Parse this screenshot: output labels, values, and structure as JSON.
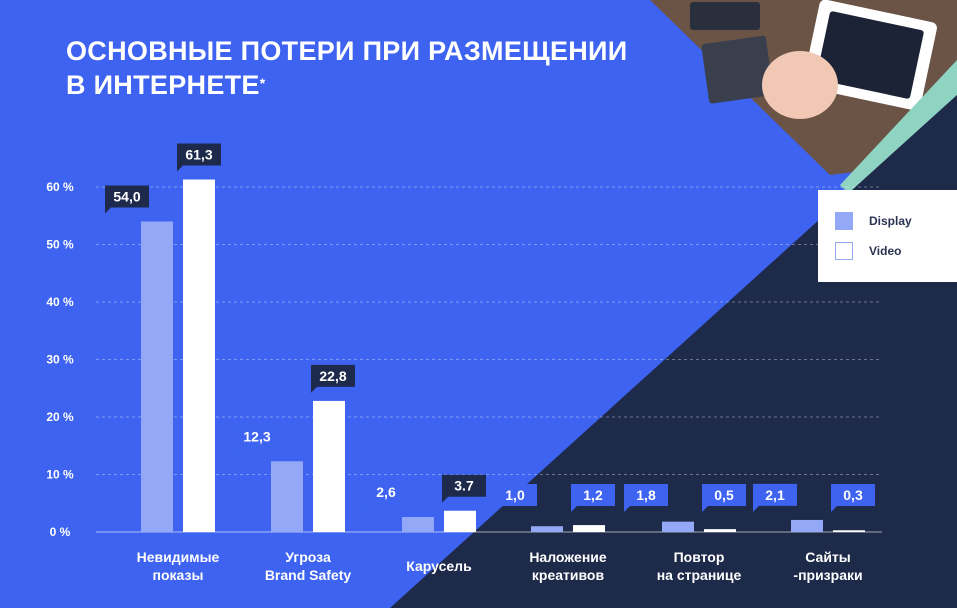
{
  "header": {
    "title_line1": "ОСНОВНЫЕ ПОТЕРИ ПРИ РАЗМЕЩЕНИИ",
    "title_line2": "В ИНТЕРНЕТЕ",
    "title_mark": "*"
  },
  "legend": {
    "items": [
      {
        "label": "Display",
        "color": "#93a9f8"
      },
      {
        "label": "Video",
        "color": "#ffffff"
      }
    ]
  },
  "colors": {
    "background_blue": "#3d63f0",
    "dark_navy": "#1e2a4a",
    "accent_teal": "#8fd3c2",
    "display_bar": "#93a9f8",
    "video_bar": "#ffffff",
    "label_dark": "#1d2a4c",
    "label_blue": "#3d63f0"
  },
  "chart_data": {
    "type": "bar",
    "categories": [
      [
        "Невидимые",
        "показы"
      ],
      [
        "Угроза",
        "Brand Safety"
      ],
      [
        "Карусель"
      ],
      [
        "Наложение",
        "креативов"
      ],
      [
        "Повтор",
        "на странице"
      ],
      [
        "Сайты",
        "-призраки"
      ]
    ],
    "series": [
      {
        "name": "Display",
        "values": [
          54.0,
          12.3,
          2.6,
          1.0,
          1.8,
          2.1
        ],
        "labels": [
          "54,0",
          "12,3",
          "2,6",
          "1,0",
          "1,8",
          "2,1"
        ]
      },
      {
        "name": "Video",
        "values": [
          61.3,
          22.8,
          3.7,
          1.2,
          0.5,
          0.3
        ],
        "labels": [
          "61,3",
          "22,8",
          "3.7",
          "1,2",
          "0,5",
          "0,3"
        ]
      }
    ],
    "yticks": [
      "0 %",
      "10 %",
      "20 %",
      "30 %",
      "40 %",
      "50 %",
      "60 %"
    ],
    "ylim": [
      0,
      60
    ],
    "grid": true,
    "legend_position": "right"
  }
}
